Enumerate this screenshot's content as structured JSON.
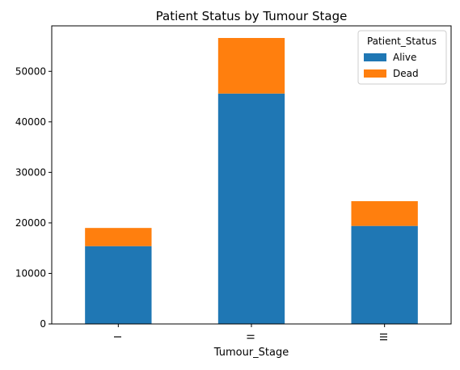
{
  "chart_data": {
    "type": "bar",
    "stacked": true,
    "title": "Patient Status by Tumour Stage",
    "xlabel": "Tumour_Stage",
    "ylabel": "",
    "categories": [
      "I",
      "II",
      "III"
    ],
    "series": [
      {
        "name": "Alive",
        "values": [
          15400,
          45600,
          19400
        ],
        "color": "#1f77b4"
      },
      {
        "name": "Dead",
        "values": [
          3600,
          11000,
          4900
        ],
        "color": "#ff7f0e"
      }
    ],
    "ylim": [
      0,
      59000
    ],
    "yticks": [
      0,
      10000,
      20000,
      30000,
      40000,
      50000
    ],
    "ytick_labels": [
      "0",
      "10000",
      "20000",
      "30000",
      "40000",
      "50000"
    ],
    "legend": {
      "title": "Patient_Status",
      "position": "top-right"
    },
    "grid": false
  }
}
